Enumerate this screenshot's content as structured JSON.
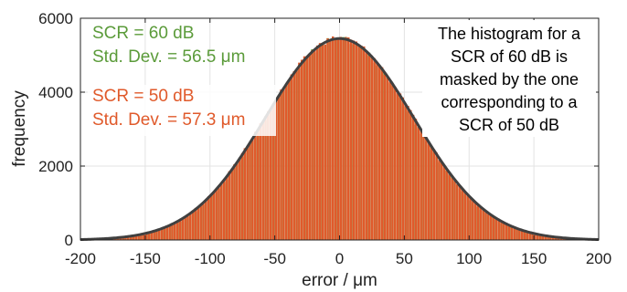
{
  "chart_data": {
    "type": "bar",
    "title": "",
    "xlabel": "error / μm",
    "ylabel": "frequency",
    "xlim": [
      -200,
      200
    ],
    "ylim": [
      0,
      6000
    ],
    "x_ticks": [
      "-200",
      "-150",
      "-100",
      "-50",
      "0",
      "50",
      "100",
      "150",
      "200"
    ],
    "y_ticks": [
      "0",
      "2000",
      "4000",
      "6000"
    ],
    "grid": true,
    "bin_width": 2,
    "series": [
      {
        "name": "SCR = 50 dB",
        "std_dev": 57.3,
        "peak": 5470,
        "color": "#e05a2b"
      },
      {
        "name": "SCR = 60 dB",
        "std_dev": 56.5,
        "peak": 5450,
        "color": "#5b9b3a"
      }
    ],
    "fit_curve": {
      "type": "gaussian",
      "mean": 0,
      "std_dev": 57.3,
      "peak": 5450,
      "color": "#404040"
    },
    "annotations": {
      "green_line1": "SCR = 60 dB",
      "green_line2": "Std. Dev. = 56.5 μm",
      "orange_line1": "SCR = 50 dB",
      "orange_line2": "Std. Dev. = 57.3 μm",
      "note_lines": [
        "The histogram for a",
        "SCR of 60 dB is",
        "masked by the one",
        "corresponding to a",
        "SCR of 50 dB"
      ]
    }
  }
}
